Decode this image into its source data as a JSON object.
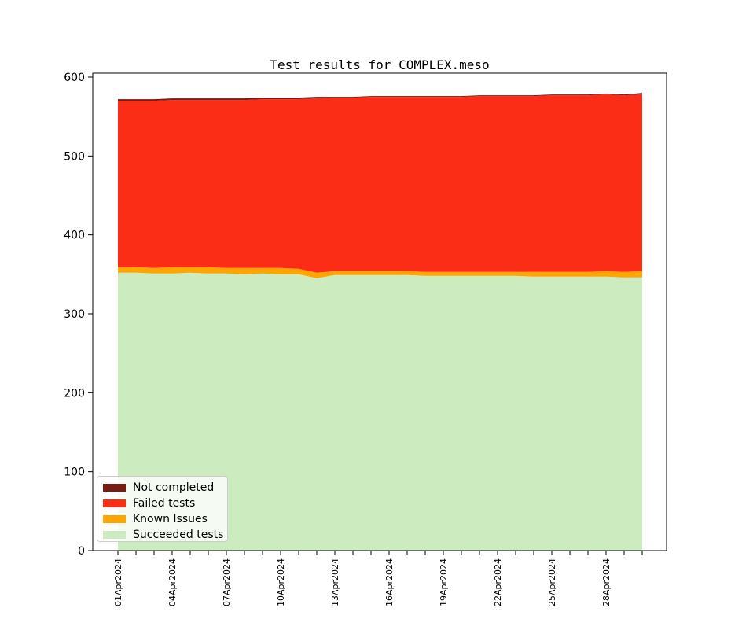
{
  "figure": {
    "background": "#ffffff"
  },
  "chart_data": {
    "type": "area",
    "stacked": true,
    "title": "Test results for COMPLEX.meso",
    "xlabel": "",
    "ylabel": "",
    "n_points": 30,
    "x_label_every_n_days": 3,
    "x_tick_labels": [
      "01Apr2024",
      "04Apr2024",
      "07Apr2024",
      "10Apr2024",
      "13Apr2024",
      "16Apr2024",
      "19Apr2024",
      "22Apr2024",
      "25Apr2024",
      "28Apr2024"
    ],
    "y_ticks": [
      0,
      100,
      200,
      300,
      400,
      500,
      600
    ],
    "ylim": [
      0,
      605
    ],
    "grid": false,
    "legend_position": "lower left",
    "series": [
      {
        "name": "Succeeded tests",
        "color": "#CCEBBE",
        "values": [
          352,
          352,
          351,
          351,
          352,
          351,
          351,
          350,
          351,
          350,
          350,
          345,
          349,
          349,
          349,
          349,
          349,
          348,
          348,
          348,
          348,
          348,
          348,
          347,
          347,
          347,
          347,
          347,
          346,
          346
        ]
      },
      {
        "name": "Known Issues",
        "color": "#FFA500",
        "values": [
          7,
          7,
          7,
          8,
          7,
          8,
          7,
          8,
          7,
          8,
          7,
          7,
          5,
          5,
          5,
          5,
          5,
          5,
          5,
          5,
          5,
          5,
          5,
          6,
          6,
          6,
          6,
          7,
          7,
          8
        ]
      },
      {
        "name": "Failed tests",
        "color": "#FC2D16",
        "values": [
          211,
          211,
          212,
          212,
          212,
          212,
          213,
          213,
          214,
          214,
          215,
          221,
          220,
          220,
          221,
          221,
          221,
          222,
          222,
          222,
          223,
          223,
          223,
          223,
          224,
          224,
          224,
          224,
          224,
          224
        ]
      },
      {
        "name": "Not completed",
        "color": "#7A1B13",
        "values": [
          2,
          2,
          2,
          2,
          2,
          2,
          2,
          2,
          2,
          2,
          2,
          2,
          1,
          1,
          1,
          1,
          1,
          1,
          1,
          1,
          1,
          1,
          1,
          1,
          1,
          1,
          1,
          1,
          1,
          2
        ]
      }
    ]
  },
  "legend": {
    "items": [
      {
        "label": "Not completed",
        "color": "#7A1B13"
      },
      {
        "label": "Failed tests",
        "color": "#FC2D16"
      },
      {
        "label": "Known Issues",
        "color": "#FFA500"
      },
      {
        "label": "Succeeded tests",
        "color": "#CCEBBE"
      }
    ]
  }
}
